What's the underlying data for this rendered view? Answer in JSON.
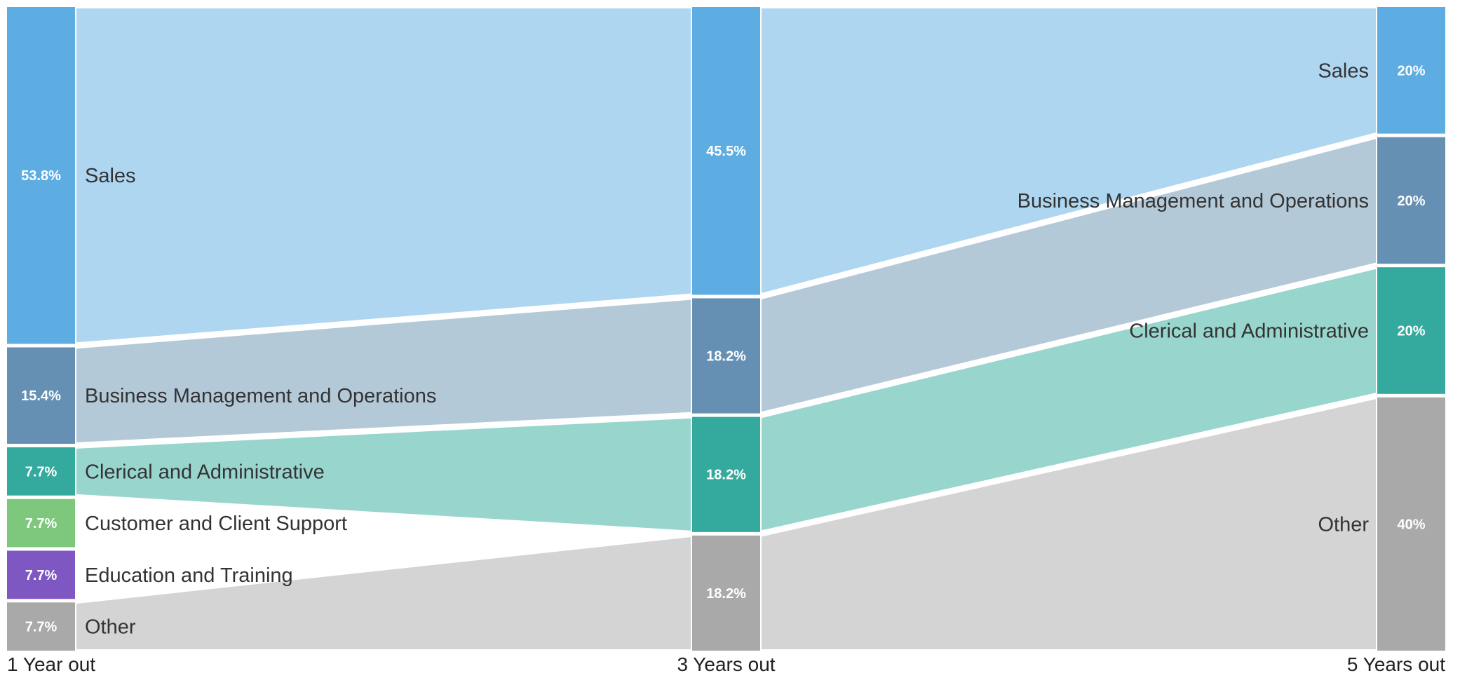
{
  "chart_data": {
    "type": "sankey",
    "columns": [
      {
        "label": "1 Year out",
        "nodes": [
          {
            "name": "Sales",
            "value": 53.8,
            "pct_label": "53.8%"
          },
          {
            "name": "Business Management and Operations",
            "value": 15.4,
            "pct_label": "15.4%"
          },
          {
            "name": "Clerical and Administrative",
            "value": 7.7,
            "pct_label": "7.7%"
          },
          {
            "name": "Customer and Client Support",
            "value": 7.7,
            "pct_label": "7.7%"
          },
          {
            "name": "Education and Training",
            "value": 7.7,
            "pct_label": "7.7%"
          },
          {
            "name": "Other",
            "value": 7.7,
            "pct_label": "7.7%"
          }
        ]
      },
      {
        "label": "3 Years out",
        "nodes": [
          {
            "name": "Sales",
            "value": 45.5,
            "pct_label": "45.5%"
          },
          {
            "name": "Business Management and Operations",
            "value": 18.2,
            "pct_label": "18.2%"
          },
          {
            "name": "Clerical and Administrative",
            "value": 18.2,
            "pct_label": "18.2%"
          },
          {
            "name": "Other",
            "value": 18.2,
            "pct_label": "18.2%"
          }
        ]
      },
      {
        "label": "5 Years out",
        "nodes": [
          {
            "name": "Sales",
            "value": 20,
            "pct_label": "20%"
          },
          {
            "name": "Business Management and Operations",
            "value": 20,
            "pct_label": "20%"
          },
          {
            "name": "Clerical and Administrative",
            "value": 20,
            "pct_label": "20%"
          },
          {
            "name": "Other",
            "value": 40,
            "pct_label": "40%"
          }
        ]
      }
    ],
    "colors": {
      "Sales": "#5dade2",
      "Business Management and Operations": "#6590b3",
      "Clerical and Administrative": "#33aa9d",
      "Customer and Client Support": "#7dc87d",
      "Education and Training": "#7e57c2",
      "Other": "#a9a9a9"
    },
    "flow_colors": {
      "Sales": "#aed6f1",
      "Business Management and Operations": "#b4c9d8",
      "Clerical and Administrative": "#98d6cd",
      "Other": "#d4d4d4"
    },
    "flows": [
      {
        "from": "Sales",
        "to": "Sales"
      },
      {
        "from": "Business Management and Operations",
        "to": "Business Management and Operations"
      },
      {
        "from": "Clerical and Administrative",
        "to": "Clerical and Administrative"
      },
      {
        "from": "Other",
        "to": "Other"
      }
    ]
  }
}
